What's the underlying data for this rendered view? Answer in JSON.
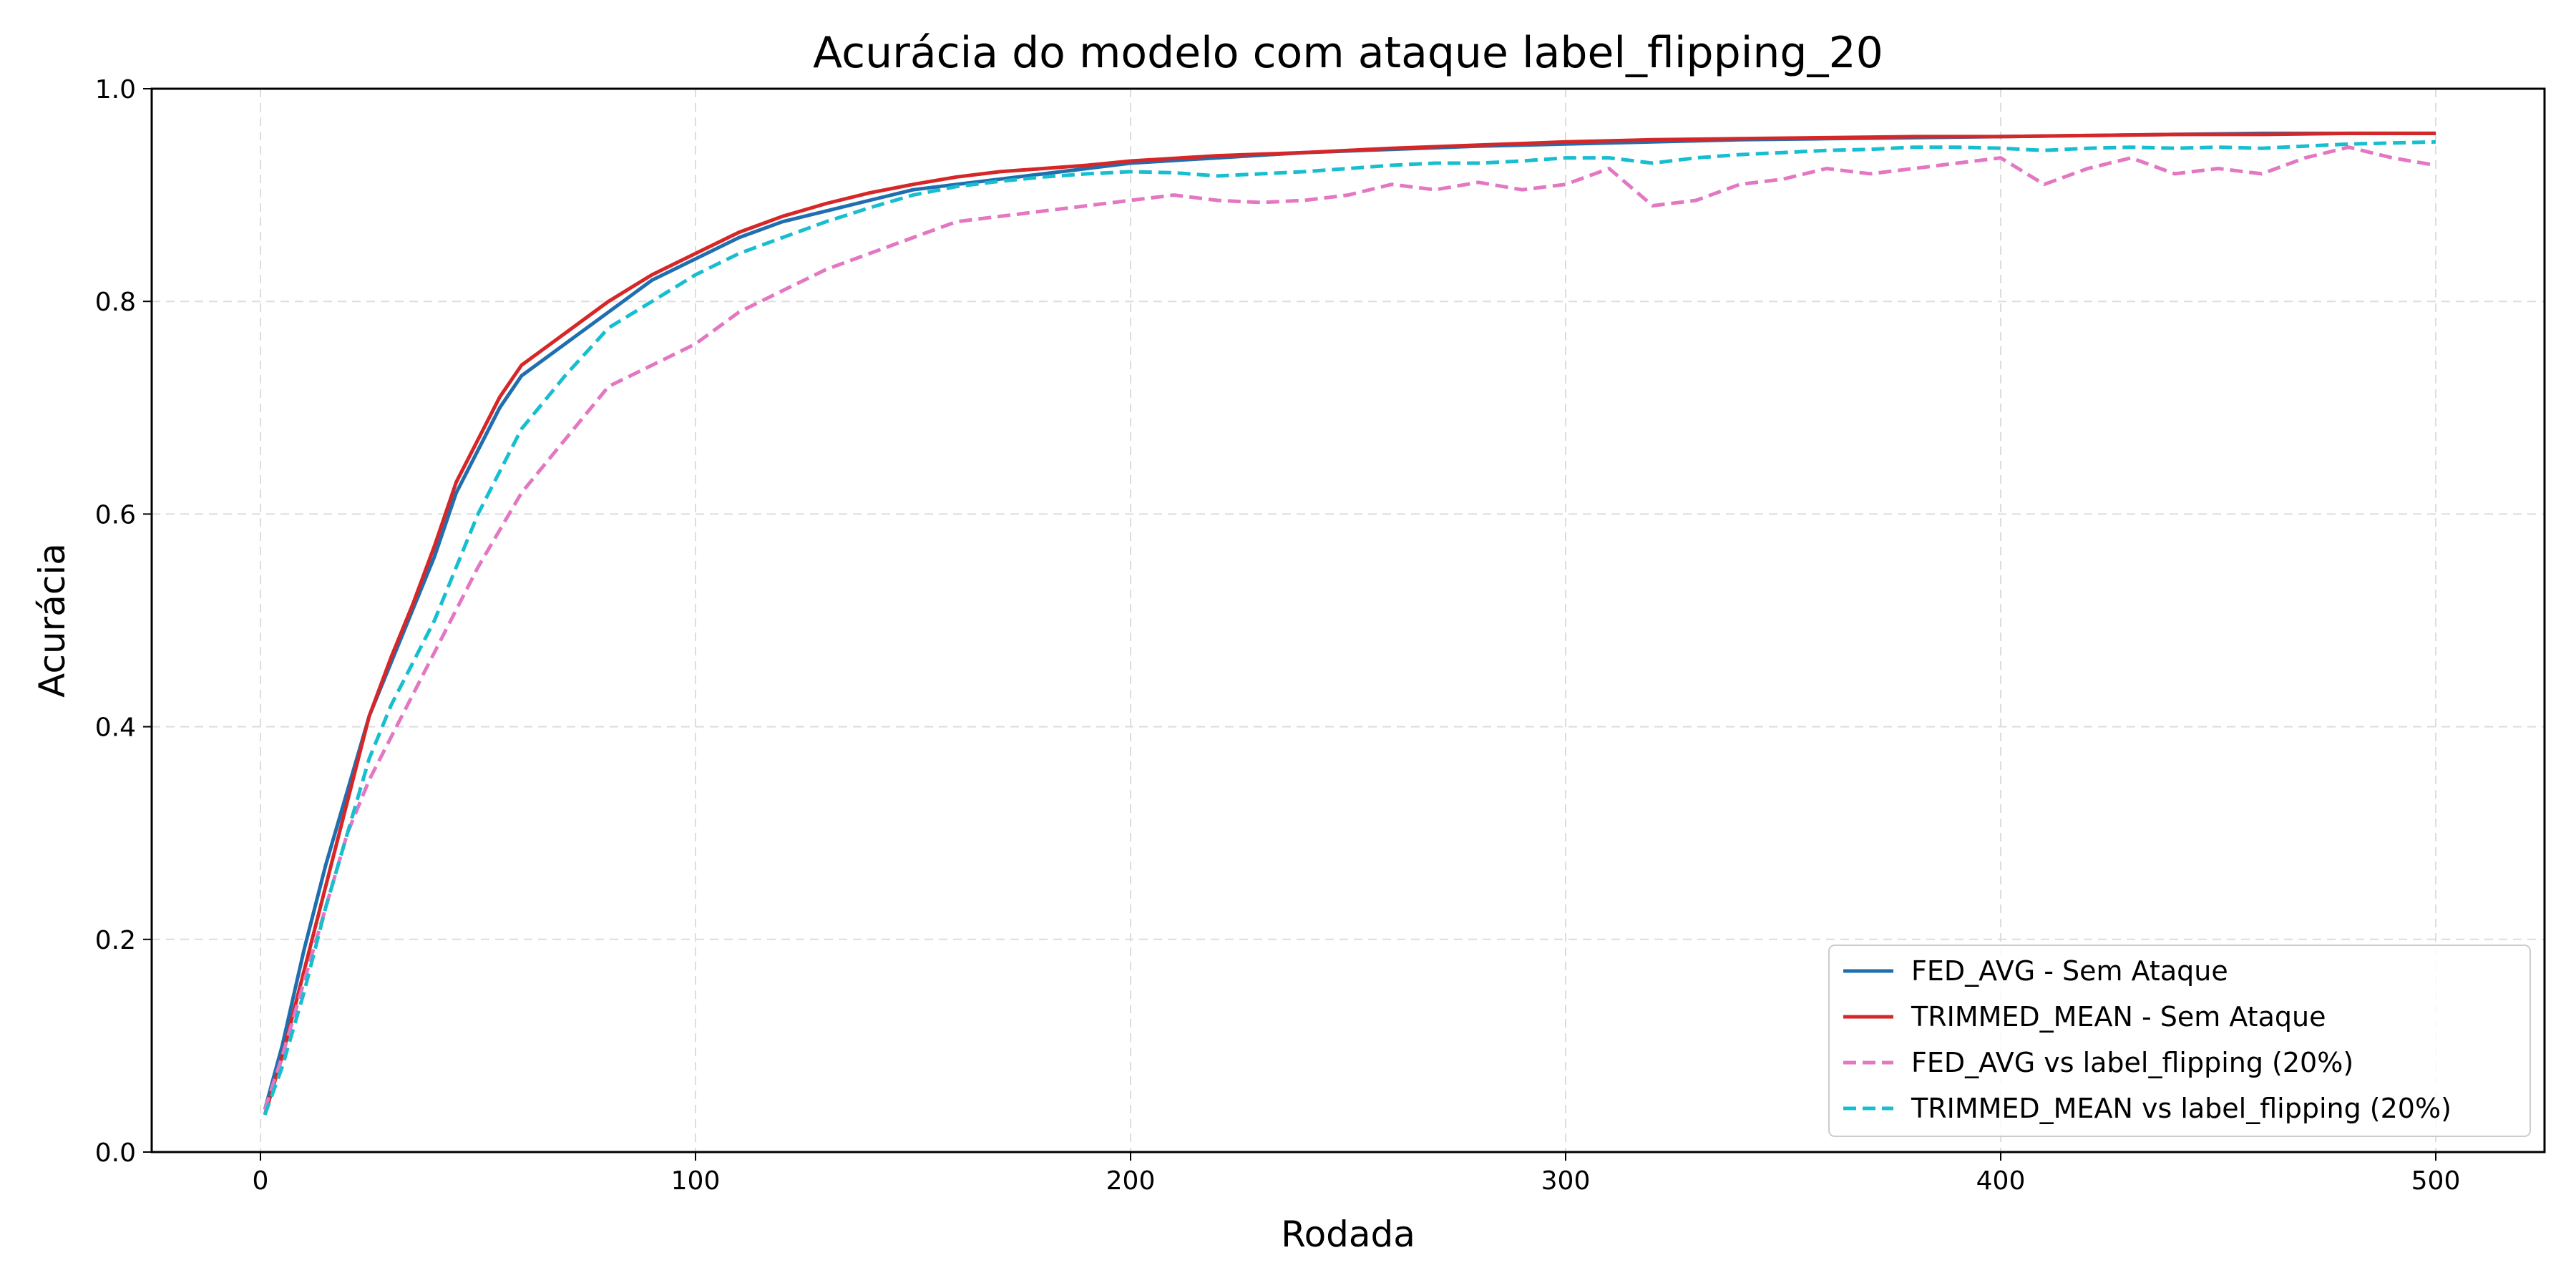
{
  "chart_data": {
    "type": "line",
    "title": "Acurácia do modelo com ataque label_flipping_20",
    "xlabel": "Rodada",
    "ylabel": "Acurácia",
    "xlim": [
      -25,
      525
    ],
    "ylim": [
      0.0,
      1.0
    ],
    "xticks": [
      0,
      100,
      200,
      300,
      400,
      500
    ],
    "yticks": [
      0.0,
      0.2,
      0.4,
      0.6,
      0.8,
      1.0
    ],
    "xtick_labels": [
      "0",
      "100",
      "200",
      "300",
      "400",
      "500"
    ],
    "ytick_labels": [
      "0.0",
      "0.2",
      "0.4",
      "0.6",
      "0.8",
      "1.0"
    ],
    "grid": true,
    "legend_position": "bottom-right",
    "series": [
      {
        "name": "FED_AVG - Sem Ataque",
        "color": "#1f6fb0",
        "style": "solid",
        "x": [
          1,
          5,
          10,
          15,
          20,
          25,
          30,
          35,
          40,
          45,
          50,
          55,
          60,
          70,
          80,
          90,
          100,
          110,
          120,
          130,
          140,
          150,
          160,
          170,
          180,
          190,
          200,
          220,
          240,
          260,
          280,
          300,
          320,
          340,
          360,
          380,
          400,
          420,
          440,
          460,
          480,
          500
        ],
        "y": [
          0.04,
          0.1,
          0.19,
          0.27,
          0.34,
          0.41,
          0.46,
          0.51,
          0.56,
          0.62,
          0.66,
          0.7,
          0.73,
          0.76,
          0.79,
          0.82,
          0.84,
          0.86,
          0.875,
          0.885,
          0.895,
          0.905,
          0.91,
          0.915,
          0.92,
          0.925,
          0.93,
          0.935,
          0.94,
          0.943,
          0.946,
          0.948,
          0.95,
          0.952,
          0.953,
          0.954,
          0.955,
          0.956,
          0.957,
          0.958,
          0.958,
          0.958
        ]
      },
      {
        "name": "TRIMMED_MEAN - Sem Ataque",
        "color": "#d62728",
        "style": "solid",
        "x": [
          1,
          5,
          10,
          15,
          20,
          25,
          30,
          35,
          40,
          45,
          50,
          55,
          60,
          70,
          80,
          90,
          100,
          110,
          120,
          130,
          140,
          150,
          160,
          170,
          180,
          190,
          200,
          220,
          240,
          260,
          280,
          300,
          320,
          340,
          360,
          380,
          400,
          420,
          440,
          460,
          480,
          500
        ],
        "y": [
          0.035,
          0.09,
          0.17,
          0.25,
          0.33,
          0.41,
          0.465,
          0.515,
          0.57,
          0.63,
          0.67,
          0.71,
          0.74,
          0.77,
          0.8,
          0.825,
          0.845,
          0.865,
          0.88,
          0.892,
          0.902,
          0.91,
          0.917,
          0.922,
          0.925,
          0.928,
          0.932,
          0.937,
          0.94,
          0.944,
          0.947,
          0.95,
          0.952,
          0.953,
          0.954,
          0.955,
          0.955,
          0.956,
          0.957,
          0.957,
          0.958,
          0.958
        ]
      },
      {
        "name": "FED_AVG vs label_flipping (20%)",
        "color": "#e377c2",
        "style": "dashed",
        "x": [
          1,
          5,
          10,
          15,
          20,
          25,
          30,
          40,
          50,
          60,
          70,
          80,
          90,
          100,
          110,
          120,
          130,
          140,
          150,
          160,
          170,
          180,
          190,
          200,
          210,
          220,
          230,
          240,
          250,
          260,
          270,
          280,
          290,
          300,
          310,
          320,
          330,
          340,
          350,
          360,
          370,
          380,
          390,
          400,
          410,
          420,
          430,
          440,
          450,
          460,
          470,
          480,
          490,
          500
        ],
        "y": [
          0.04,
          0.09,
          0.16,
          0.23,
          0.3,
          0.35,
          0.39,
          0.47,
          0.55,
          0.62,
          0.67,
          0.72,
          0.74,
          0.76,
          0.79,
          0.81,
          0.83,
          0.845,
          0.86,
          0.875,
          0.88,
          0.885,
          0.89,
          0.895,
          0.9,
          0.895,
          0.893,
          0.895,
          0.9,
          0.91,
          0.905,
          0.912,
          0.905,
          0.91,
          0.925,
          0.89,
          0.895,
          0.91,
          0.915,
          0.925,
          0.92,
          0.925,
          0.93,
          0.935,
          0.91,
          0.925,
          0.935,
          0.92,
          0.925,
          0.92,
          0.935,
          0.945,
          0.935,
          0.928
        ]
      },
      {
        "name": "TRIMMED_MEAN vs label_flipping (20%)",
        "color": "#17becf",
        "style": "dashed",
        "x": [
          1,
          5,
          10,
          15,
          20,
          25,
          30,
          40,
          50,
          60,
          70,
          80,
          90,
          100,
          110,
          120,
          130,
          140,
          150,
          160,
          170,
          180,
          190,
          200,
          210,
          220,
          230,
          240,
          250,
          260,
          270,
          280,
          290,
          300,
          310,
          320,
          330,
          340,
          350,
          360,
          370,
          380,
          390,
          400,
          410,
          420,
          430,
          440,
          450,
          460,
          470,
          480,
          490,
          500
        ],
        "y": [
          0.035,
          0.08,
          0.15,
          0.23,
          0.3,
          0.37,
          0.42,
          0.5,
          0.6,
          0.68,
          0.73,
          0.775,
          0.8,
          0.825,
          0.845,
          0.86,
          0.875,
          0.888,
          0.9,
          0.908,
          0.913,
          0.917,
          0.92,
          0.922,
          0.921,
          0.918,
          0.92,
          0.922,
          0.925,
          0.928,
          0.93,
          0.93,
          0.932,
          0.935,
          0.935,
          0.93,
          0.935,
          0.938,
          0.94,
          0.942,
          0.943,
          0.945,
          0.945,
          0.944,
          0.942,
          0.944,
          0.945,
          0.944,
          0.945,
          0.944,
          0.946,
          0.948,
          0.949,
          0.95
        ]
      }
    ]
  }
}
